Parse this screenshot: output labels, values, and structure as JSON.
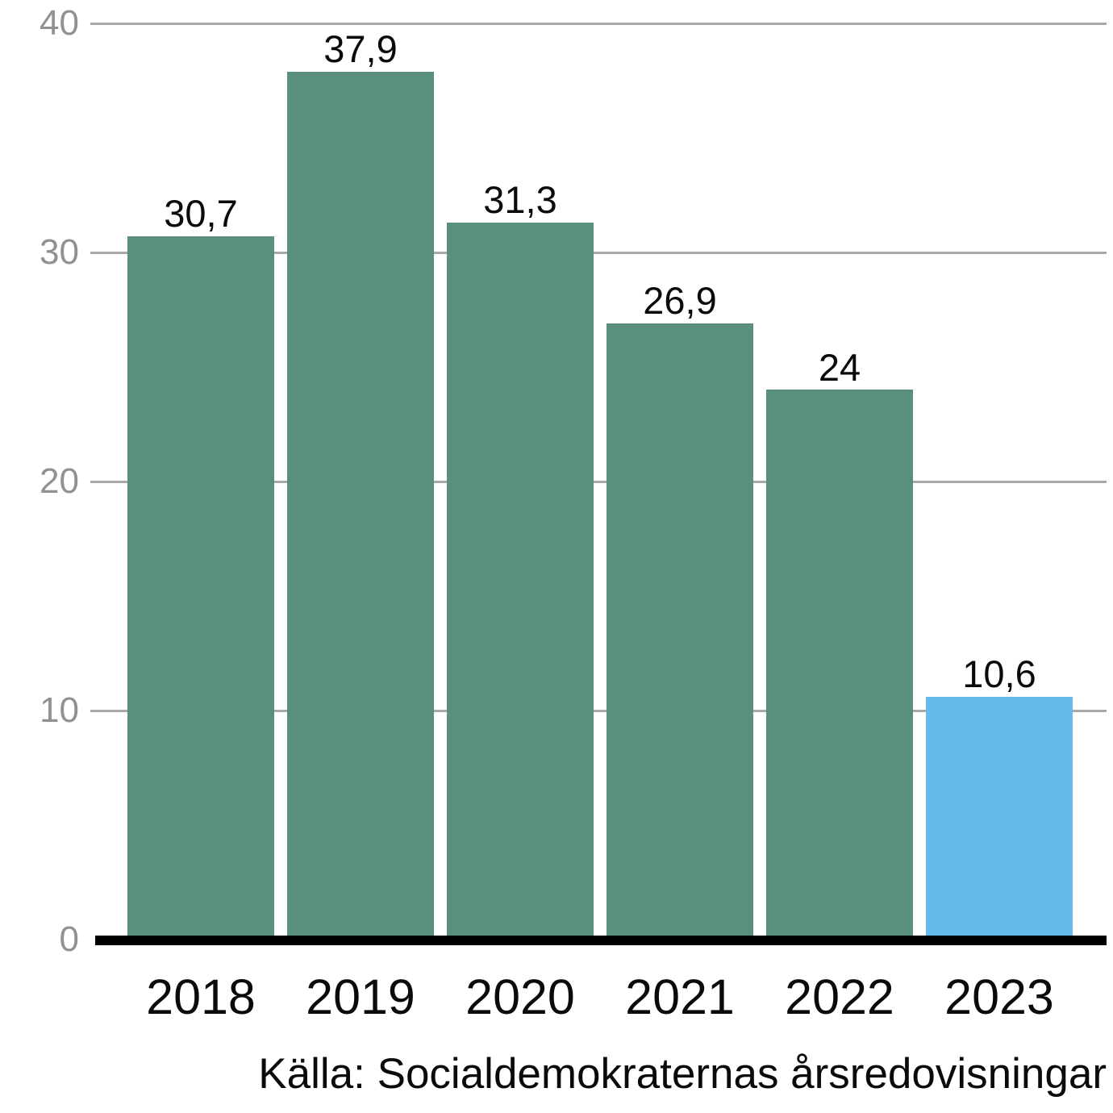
{
  "chart_data": {
    "type": "bar",
    "categories": [
      "2018",
      "2019",
      "2020",
      "2021",
      "2022",
      "2023"
    ],
    "values": [
      30.7,
      37.9,
      31.3,
      26.9,
      24,
      10.6
    ],
    "value_labels": [
      "30,7",
      "37,9",
      "31,3",
      "26,9",
      "24",
      "10,6"
    ],
    "bar_colors": [
      "#5a8e7e",
      "#5a8e7e",
      "#5a8e7e",
      "#5a8e7e",
      "#5a8e7e",
      "#65bce8"
    ],
    "y_ticks": [
      0,
      10,
      20,
      30,
      40
    ],
    "y_tick_labels": [
      "0",
      "10",
      "20",
      "30",
      "40"
    ],
    "ylim": [
      0,
      40
    ],
    "grid": true,
    "legend_position": "none",
    "title": "",
    "xlabel": "",
    "ylabel": "",
    "source": "Källa: Socialdemokraternas årsredovisningar",
    "colors": {
      "bar_default": "#5a8e7e",
      "bar_highlight": "#65bce8",
      "gridline": "#a9a9a9",
      "y_tick_label": "#919191",
      "text": "#0a0a0a",
      "axis_line": "#000000"
    }
  }
}
